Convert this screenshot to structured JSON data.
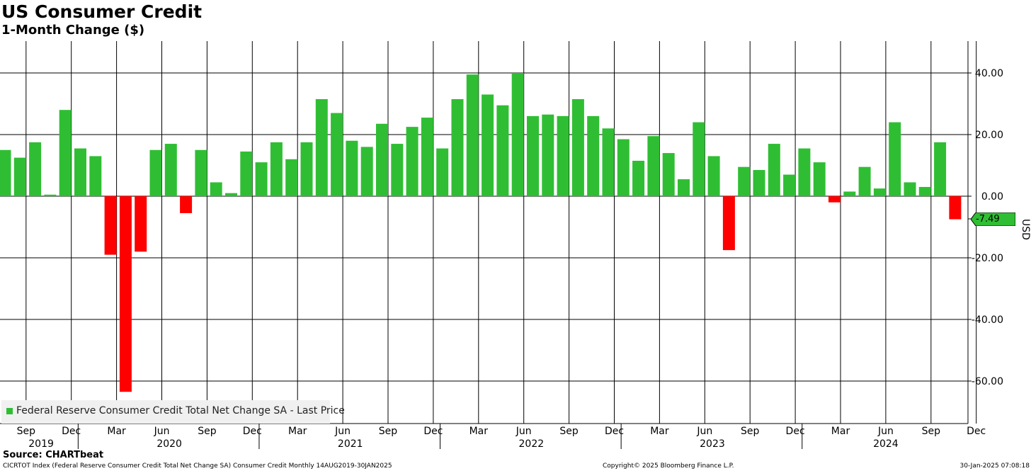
{
  "title": "US Consumer Credit",
  "subtitle": "1-Month Change ($)",
  "source": "Source: CHARTbeat",
  "footer": {
    "left": "CICRTOT Index (Federal Reserve Consumer Credit Total Net Change SA) Consumer Credit  Monthly 14AUG2019-30JAN2025",
    "center": "Copyright© 2025 Bloomberg Finance L.P.",
    "right": "30-Jan-2025 07:08:18"
  },
  "colors": {
    "positive": "#2fbe33",
    "negative": "#ff0000",
    "grid": "#000000",
    "last_value_bg": "#2fbe33"
  },
  "chart_data": {
    "type": "bar",
    "ylabel": "USD",
    "ylim": [
      -75,
      50
    ],
    "yticks": [
      40,
      20,
      0,
      -20,
      -40,
      -60
    ],
    "ytick_labels": [
      "40.00",
      "20.00",
      "0.00",
      "-20.00",
      "-40.00",
      "-60.00"
    ],
    "last_value": -7.49,
    "last_value_label": "-7.49",
    "legend": "Federal Reserve Consumer Credit Total Net Change SA - Last Price",
    "legend_position": "bottom-left",
    "categories": [
      "2019-08",
      "2019-09",
      "2019-10",
      "2019-11",
      "2019-12",
      "2020-01",
      "2020-02",
      "2020-03",
      "2020-04",
      "2020-05",
      "2020-06",
      "2020-07",
      "2020-08",
      "2020-09",
      "2020-10",
      "2020-11",
      "2020-12",
      "2021-01",
      "2021-02",
      "2021-03",
      "2021-04",
      "2021-05",
      "2021-06",
      "2021-07",
      "2021-08",
      "2021-09",
      "2021-10",
      "2021-11",
      "2021-12",
      "2022-01",
      "2022-02",
      "2022-03",
      "2022-04",
      "2022-05",
      "2022-06",
      "2022-07",
      "2022-08",
      "2022-09",
      "2022-10",
      "2022-11",
      "2022-12",
      "2023-01",
      "2023-02",
      "2023-03",
      "2023-04",
      "2023-05",
      "2023-06",
      "2023-07",
      "2023-08",
      "2023-09",
      "2023-10",
      "2023-11",
      "2023-12",
      "2024-01",
      "2024-02",
      "2024-03",
      "2024-04",
      "2024-05",
      "2024-06",
      "2024-07",
      "2024-08",
      "2024-09",
      "2024-10",
      "2024-11"
    ],
    "values": [
      15.0,
      12.5,
      17.5,
      0.5,
      28.0,
      15.5,
      13.0,
      -19.0,
      -63.5,
      -18.0,
      15.0,
      17.0,
      -5.5,
      15.0,
      4.5,
      1.0,
      14.5,
      11.0,
      17.5,
      12.0,
      17.5,
      31.5,
      27.0,
      18.0,
      16.0,
      23.5,
      17.0,
      22.5,
      25.5,
      15.5,
      31.5,
      39.5,
      33.0,
      29.5,
      40.0,
      26.0,
      26.5,
      26.0,
      31.5,
      26.0,
      22.0,
      18.5,
      11.5,
      19.5,
      14.0,
      5.5,
      24.0,
      13.0,
      -17.5,
      9.5,
      8.5,
      17.0,
      7.0,
      15.5,
      11.0,
      -2.0,
      1.5,
      9.5,
      2.5,
      24.0,
      4.5,
      3.0,
      17.5,
      -7.49
    ],
    "x_tick_labels": [
      "Sep",
      "Dec",
      "Mar",
      "Jun",
      "Sep",
      "Dec",
      "Mar",
      "Jun",
      "Sep",
      "Dec",
      "Mar",
      "Jun",
      "Sep",
      "Dec",
      "Mar",
      "Jun",
      "Sep",
      "Dec",
      "Mar",
      "Jun",
      "Sep",
      "Dec"
    ],
    "year_labels": [
      "2019",
      "2020",
      "2021",
      "2022",
      "2023",
      "2024"
    ]
  }
}
